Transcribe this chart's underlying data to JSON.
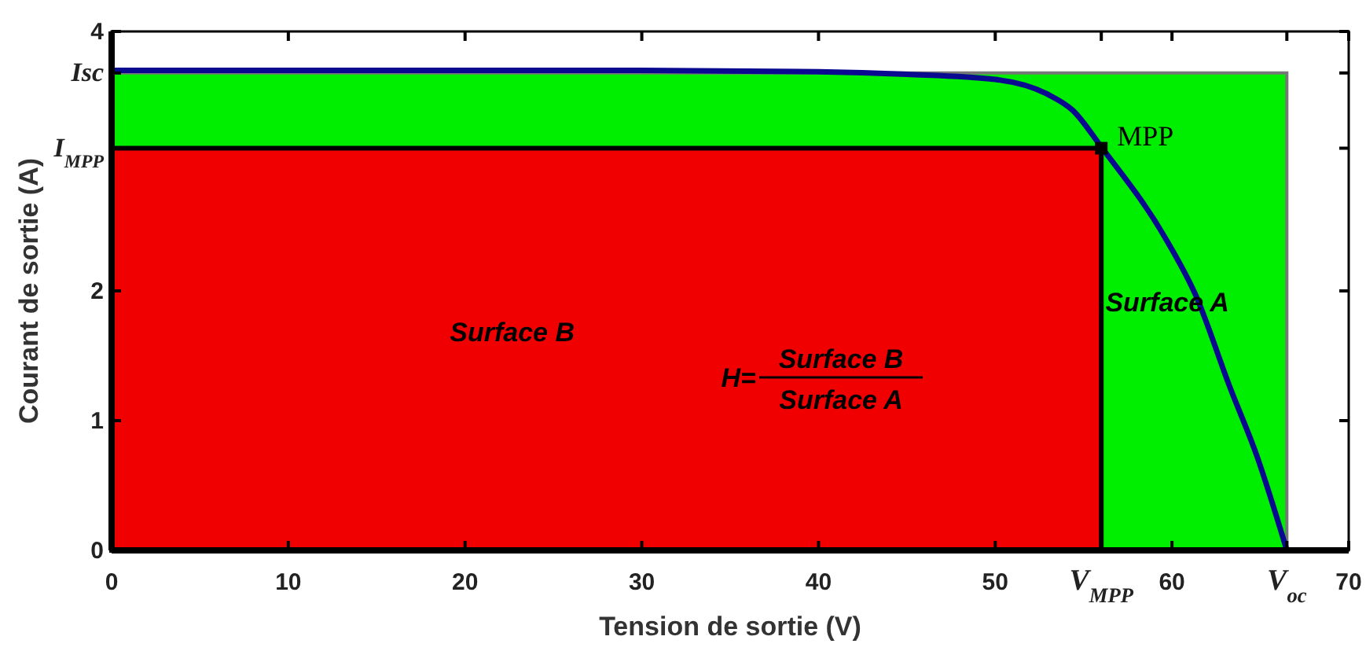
{
  "chart_data": {
    "type": "line",
    "xlabel": "Tension de sortie (V)",
    "ylabel": "Courant de sortie (A)",
    "xlim": [
      0,
      70
    ],
    "ylim": [
      0,
      4
    ],
    "xticks": [
      0,
      10,
      20,
      30,
      40,
      50,
      {
        "value": 56,
        "label": "V$_{MPP}$"
      },
      60,
      {
        "value": 66.5,
        "label": "V$_{oc}$"
      },
      70
    ],
    "yticks": [
      0,
      1,
      2,
      {
        "value": 3.1,
        "label": "I$_{MPP}$"
      },
      {
        "value": 3.68,
        "label": "Isc"
      },
      4
    ],
    "series": [
      {
        "type": "area",
        "name": "Surface A",
        "color": "#00ee00",
        "x": [
          0,
          66.5
        ],
        "values": [
          3.68,
          3.68
        ]
      },
      {
        "type": "area",
        "name": "Surface B",
        "color": "#f00000",
        "x": [
          0,
          56
        ],
        "values": [
          3.1,
          3.1
        ]
      },
      {
        "color": "#0a0a90",
        "x": [
          0,
          10,
          20,
          30,
          40,
          45,
          50,
          52.9,
          54.4,
          56,
          59.7,
          61.3,
          63.3,
          64.8,
          66.5
        ],
        "values": [
          3.7,
          3.7,
          3.7,
          3.7,
          3.69,
          3.67,
          3.63,
          3.52,
          3.39,
          3.11,
          2.39,
          1.98,
          1.25,
          0.73,
          0
        ]
      },
      {
        "type": "scatter",
        "marker": "square",
        "color": "#000000",
        "x": [
          56
        ],
        "values": [
          3.1
        ]
      }
    ],
    "line_style": "solid",
    "grid": false,
    "annotations": [
      {
        "text": "MPP",
        "x": 56,
        "y": 3.1
      },
      "H=",
      "Surface B",
      "Surface A"
    ]
  }
}
